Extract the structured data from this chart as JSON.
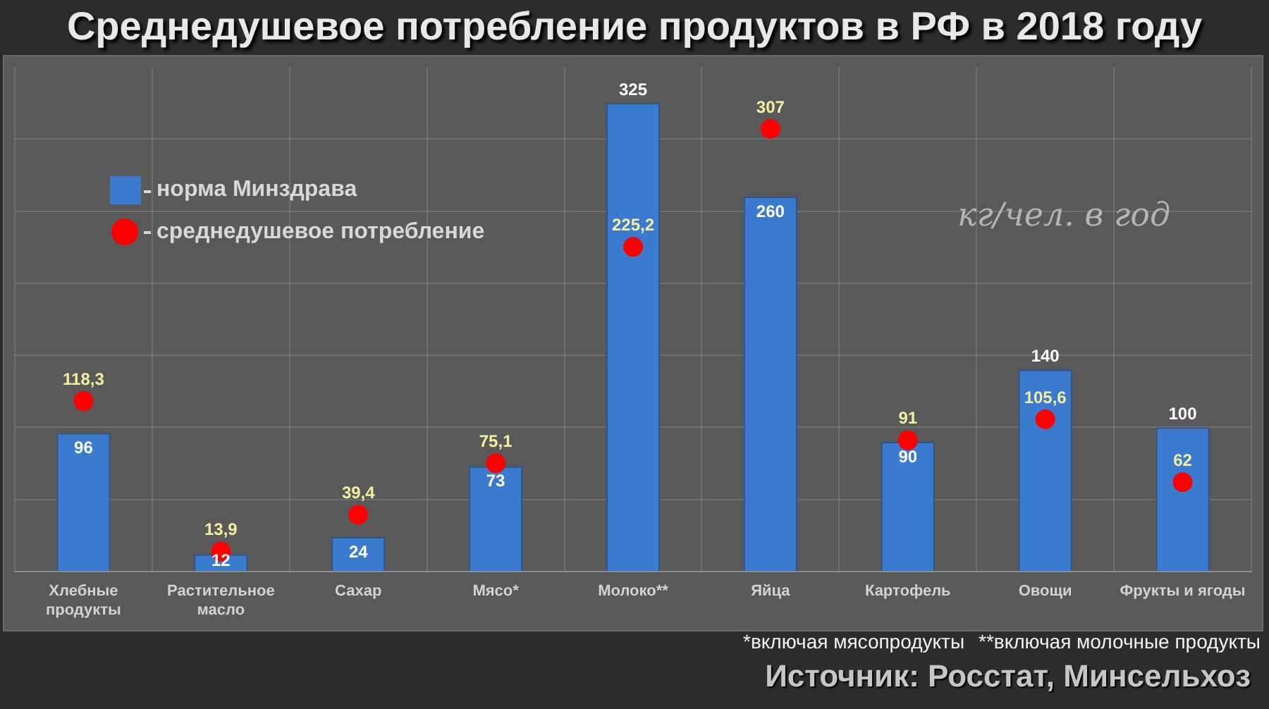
{
  "chart_data": {
    "type": "bar",
    "title": "Среднедушевое потребление продуктов в РФ в 2018 году",
    "categories": [
      "Хлебные продукты",
      "Растительное масло",
      "Сахар",
      "Мясо*",
      "Молоко**",
      "Яйца",
      "Картофель",
      "Овощи",
      "Фрукты и ягоды"
    ],
    "series": [
      {
        "name": "норма Минздрава",
        "color": "#3a7bd0",
        "values": [
          96,
          12,
          24,
          73,
          325,
          260,
          90,
          140,
          100
        ],
        "value_labels": [
          "96",
          "12",
          "24",
          "73",
          "325",
          "260",
          "90",
          "140",
          "100"
        ]
      },
      {
        "name": "среднедушевое потребление",
        "type": "scatter",
        "color": "#ff0000",
        "values": [
          118.3,
          13.9,
          39.4,
          75.1,
          225.2,
          307,
          91,
          105.6,
          62
        ],
        "value_labels": [
          "118,3",
          "13,9",
          "39,4",
          "75,1",
          "225,2",
          "307",
          "91",
          "105,6",
          "62"
        ]
      }
    ],
    "ylim": [
      0,
      350
    ],
    "yticks": [
      {
        "value": 0,
        "label": null
      },
      {
        "value": 50,
        "label": null
      },
      {
        "value": 100,
        "label": null
      },
      {
        "value": 150,
        "label": null
      },
      {
        "value": 200,
        "label": null
      },
      {
        "value": 250,
        "label": null
      },
      {
        "value": 300,
        "label": null
      }
    ],
    "tick_labels": "x",
    "grid": true,
    "legend": "top left",
    "marker": "circle",
    "annotations": [
      "кг/чел. в год",
      "*включая мясопродукты",
      "**включая молочные продукты",
      "Источник: Росстат, Минсельхоз"
    ]
  }
}
